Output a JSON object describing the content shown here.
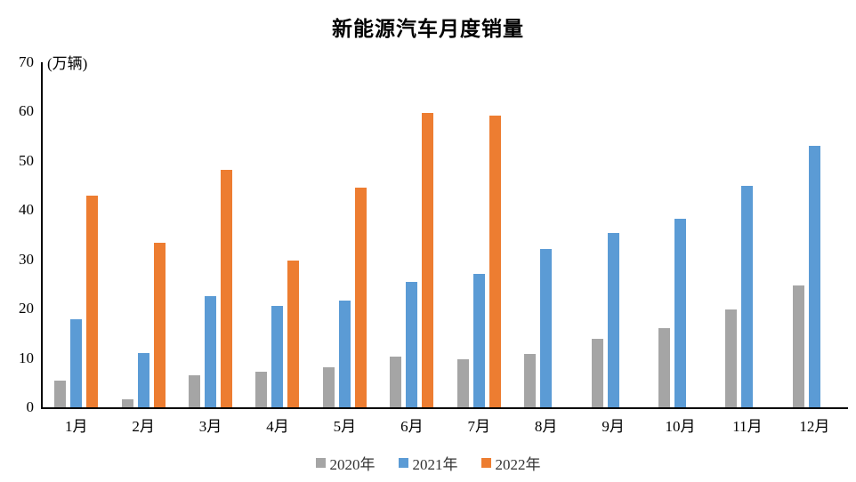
{
  "title": "新能源汽车月度销量",
  "colors": {
    "series_2020": "#A5A5A5",
    "series_2021": "#5B9BD5",
    "series_2022": "#ED7D31",
    "axis": "#000000",
    "background": "#FFFFFF"
  },
  "chart_data": {
    "type": "bar",
    "title": "新能源汽车月度销量",
    "unit_label": "(万辆)",
    "xlabel": "",
    "ylabel": "(万辆)",
    "categories": [
      "1月",
      "2月",
      "3月",
      "4月",
      "5月",
      "6月",
      "7月",
      "8月",
      "9月",
      "10月",
      "11月",
      "12月"
    ],
    "series": [
      {
        "name": "2020年",
        "color": "#A5A5A5",
        "values": [
          5.4,
          1.6,
          6.5,
          7.2,
          8.1,
          10.3,
          9.8,
          10.8,
          13.9,
          16.0,
          19.9,
          24.8
        ]
      },
      {
        "name": "2021年",
        "color": "#5B9BD5",
        "values": [
          17.9,
          11.0,
          22.5,
          20.6,
          21.6,
          25.4,
          27.1,
          32.1,
          35.4,
          38.2,
          45.0,
          53.0
        ]
      },
      {
        "name": "2022年",
        "color": "#ED7D31",
        "values": [
          42.9,
          33.4,
          48.2,
          29.8,
          44.6,
          59.7,
          59.2,
          null,
          null,
          null,
          null,
          null
        ]
      }
    ],
    "ylim": [
      0,
      70
    ],
    "yticks": [
      0,
      10,
      20,
      30,
      40,
      50,
      60,
      70
    ],
    "grid": false,
    "legend_position": "bottom",
    "legend_entries": [
      "2020年",
      "2021年",
      "2022年"
    ]
  }
}
